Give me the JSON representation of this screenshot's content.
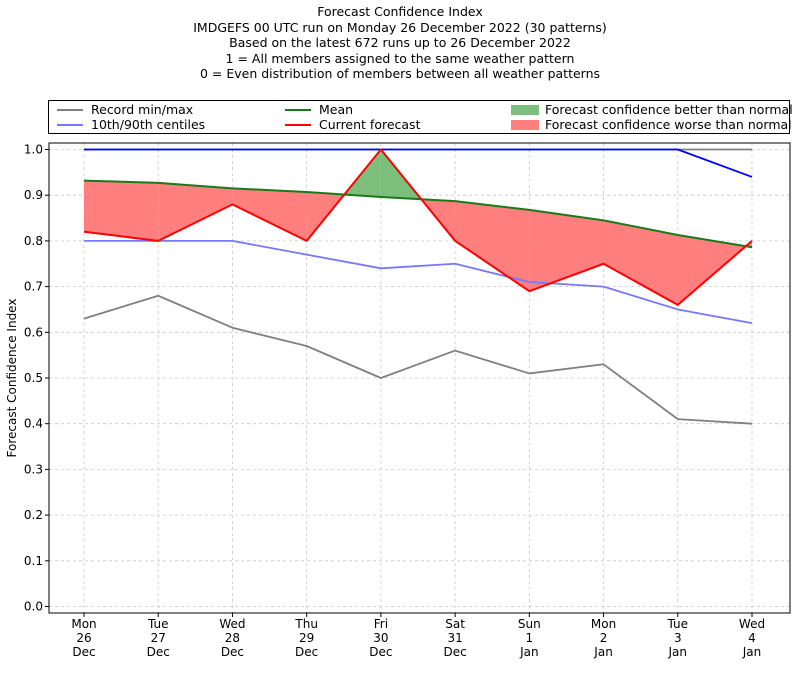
{
  "titles": [
    "Forecast Confidence Index",
    "IMDGEFS 00 UTC run on Monday 26 December 2022 (30 patterns)",
    "Based on the latest 672 runs up to 26 December 2022",
    "1 = All members assigned to the same weather pattern",
    "0 = Even distribution of members between all weather patterns"
  ],
  "legend": {
    "record": {
      "label": "Record min/max",
      "color": "#808080"
    },
    "centiles": {
      "label": "10th/90th centiles",
      "color": "#7777ff"
    },
    "mean": {
      "label": "Mean",
      "color": "#1a7a1a"
    },
    "current": {
      "label": "Current forecast",
      "color": "#ff0000"
    },
    "better": {
      "label": "Forecast confidence better than normal",
      "color": "#7cbf7c"
    },
    "worse": {
      "label": "Forecast confidence worse than normal",
      "color": "#ff7f7f"
    }
  },
  "chart_data": {
    "type": "line",
    "ylabel": "Forecast Confidence Index",
    "xlabel": "",
    "ylim": [
      0.0,
      1.0
    ],
    "yticks": [
      "0.0",
      "0.1",
      "0.2",
      "0.3",
      "0.4",
      "0.5",
      "0.6",
      "0.7",
      "0.8",
      "0.9",
      "1.0"
    ],
    "grid": true,
    "categories": [
      [
        "Mon",
        "26",
        "Dec"
      ],
      [
        "Tue",
        "27",
        "Dec"
      ],
      [
        "Wed",
        "28",
        "Dec"
      ],
      [
        "Thu",
        "29",
        "Dec"
      ],
      [
        "Fri",
        "30",
        "Dec"
      ],
      [
        "Sat",
        "31",
        "Dec"
      ],
      [
        "Sun",
        "1",
        "Jan"
      ],
      [
        "Mon",
        "2",
        "Jan"
      ],
      [
        "Tue",
        "3",
        "Jan"
      ],
      [
        "Wed",
        "4",
        "Jan"
      ]
    ],
    "series": [
      {
        "name": "Record min/max",
        "role": "record_max",
        "color": "#808080",
        "values": [
          1.0,
          1.0,
          1.0,
          1.0,
          1.0,
          1.0,
          1.0,
          1.0,
          1.0,
          1.0
        ]
      },
      {
        "name": "Record min/max",
        "role": "record_min",
        "color": "#808080",
        "values": [
          0.63,
          0.68,
          0.61,
          0.57,
          0.5,
          0.56,
          0.51,
          0.53,
          0.41,
          0.4
        ]
      },
      {
        "name": "10th/90th centiles",
        "role": "p90",
        "color": "#0000ff",
        "values": [
          1.0,
          1.0,
          1.0,
          1.0,
          1.0,
          1.0,
          1.0,
          1.0,
          1.0,
          0.94
        ]
      },
      {
        "name": "10th/90th centiles",
        "role": "p10",
        "color": "#7777ff",
        "values": [
          0.8,
          0.8,
          0.8,
          0.77,
          0.74,
          0.75,
          0.71,
          0.7,
          0.65,
          0.62
        ]
      },
      {
        "name": "Mean",
        "role": "mean",
        "color": "#1a7a1a",
        "values": [
          0.932,
          0.927,
          0.915,
          0.907,
          0.896,
          0.887,
          0.868,
          0.845,
          0.813,
          0.786
        ]
      },
      {
        "name": "Current forecast",
        "role": "current",
        "color": "#ff0000",
        "values": [
          0.82,
          0.8,
          0.88,
          0.8,
          1.0,
          0.8,
          0.69,
          0.75,
          0.66,
          0.8
        ]
      }
    ]
  }
}
